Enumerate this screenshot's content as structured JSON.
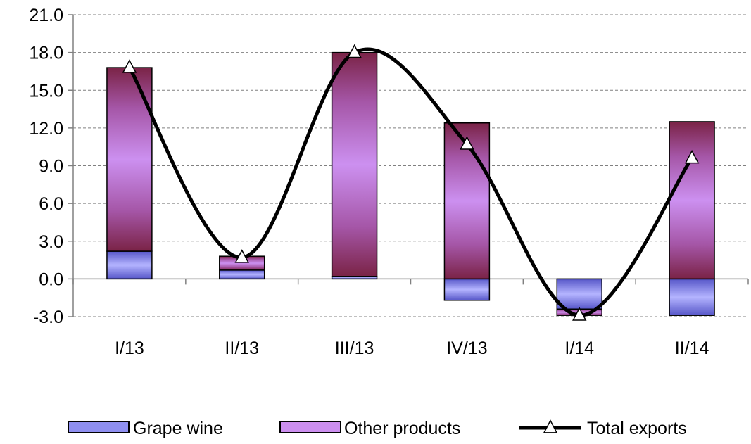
{
  "chart_data": {
    "type": "bar",
    "stacked": true,
    "categories": [
      "I/13",
      "II/13",
      "III/13",
      "IV/13",
      "I/14",
      "II/14"
    ],
    "series": [
      {
        "name": "Grape wine",
        "kind": "bar",
        "values": [
          2.2,
          0.7,
          0.2,
          -1.7,
          -2.4,
          -2.9
        ],
        "color": "#8f8ff0"
      },
      {
        "name": "Other products",
        "kind": "bar",
        "values": [
          14.6,
          1.1,
          17.8,
          12.4,
          -0.5,
          12.5
        ],
        "color": "#cc8fef"
      },
      {
        "name": "Total exports",
        "kind": "line",
        "values": [
          16.8,
          1.7,
          18.0,
          10.7,
          -2.9,
          9.6
        ],
        "color": "#000000"
      }
    ],
    "ylim": [
      -3.0,
      21.0
    ],
    "yticks": [
      "-3.0",
      "0.0",
      "3.0",
      "6.0",
      "9.0",
      "12.0",
      "15.0",
      "18.0",
      "21.0"
    ],
    "grid": true,
    "legend": "bottom",
    "title": "",
    "xlabel": "",
    "ylabel": ""
  }
}
